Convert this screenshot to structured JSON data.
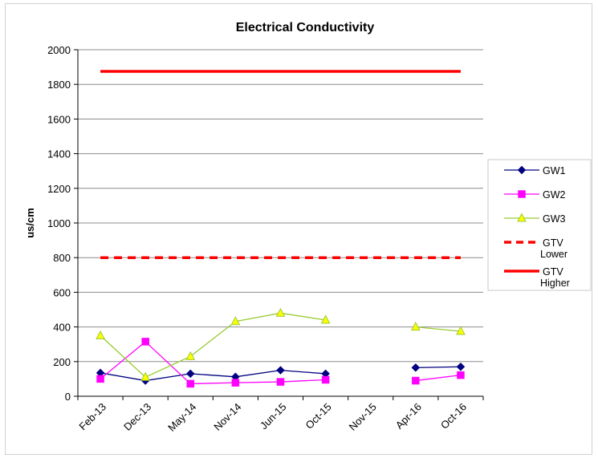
{
  "chart_data": {
    "type": "line",
    "title": "Electrical Conductivity",
    "xlabel": "",
    "ylabel": "us/cm",
    "ylim": [
      0,
      2000
    ],
    "yticks": [
      0,
      200,
      400,
      600,
      800,
      1000,
      1200,
      1400,
      1600,
      1800,
      2000
    ],
    "grid": true,
    "legend_position": "right",
    "categories": [
      "Feb-13",
      "Dec-13",
      "May-14",
      "Nov-14",
      "Jun-15",
      "Oct-15",
      "Nov-15",
      "Apr-16",
      "Oct-16"
    ],
    "series": [
      {
        "name": "GW1",
        "color": "#000080",
        "marker": "diamond",
        "dash": "solid",
        "values": [
          135,
          90,
          130,
          112,
          150,
          130,
          null,
          165,
          170
        ]
      },
      {
        "name": "GW2",
        "color": "#ff00ff",
        "marker": "square",
        "dash": "solid",
        "values": [
          100,
          315,
          72,
          78,
          83,
          95,
          null,
          90,
          122
        ]
      },
      {
        "name": "GW3",
        "color": "#99cc33",
        "marker": "triangle",
        "dash": "solid",
        "values": [
          350,
          110,
          230,
          432,
          480,
          440,
          null,
          400,
          375
        ]
      },
      {
        "name": "GTV Lower",
        "color": "#ff0000",
        "marker": "none",
        "dash": "dashed",
        "values": [
          800,
          800,
          800,
          800,
          800,
          800,
          800,
          800,
          800
        ]
      },
      {
        "name": "GTV Higher",
        "color": "#ff0000",
        "marker": "none",
        "dash": "solid",
        "values": [
          1875,
          1875,
          1875,
          1875,
          1875,
          1875,
          1875,
          1875,
          1875
        ]
      }
    ]
  }
}
